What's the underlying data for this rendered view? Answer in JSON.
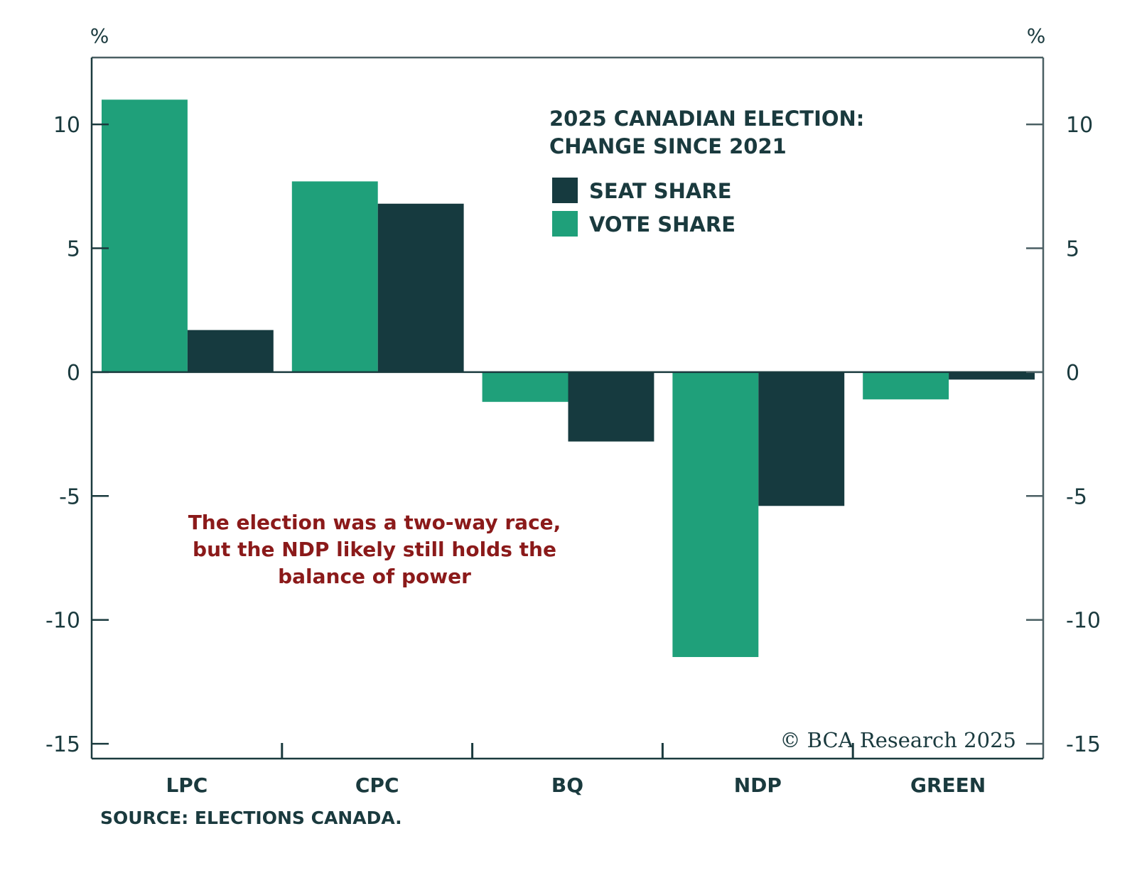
{
  "chart_data": {
    "type": "bar",
    "title": "2025 CANADIAN ELECTION:",
    "subtitle": "CHANGE SINCE 2021",
    "xlabel": "",
    "ylabel": "%",
    "ylabel_right": "%",
    "ylim": [
      -15.6,
      12.7
    ],
    "yticks": [
      10,
      5,
      0,
      -5,
      -10,
      -15
    ],
    "ytick_labels": [
      "10",
      "5",
      "0",
      "-5",
      "-10",
      "-15"
    ],
    "categories": [
      "LPC",
      "CPC",
      "BQ",
      "NDP",
      "GREEN"
    ],
    "series": [
      {
        "name": "VOTE SHARE",
        "color": "#1fa07a",
        "values": [
          11.0,
          7.7,
          -1.2,
          -11.5,
          -1.1
        ]
      },
      {
        "name": "SEAT SHARE",
        "color": "#163a3f",
        "values": [
          1.7,
          6.8,
          -2.8,
          -5.4,
          -0.3
        ]
      }
    ],
    "legend": {
      "position": "top-right",
      "entries": [
        "SEAT SHARE",
        "VOTE SHARE"
      ]
    },
    "legend_order": [
      1,
      0
    ],
    "annotation": [
      "The election was a two-way race,",
      "but the NDP likely still holds the",
      "balance of power"
    ],
    "source": "SOURCE: ELECTIONS CANADA.",
    "copyright": "© BCA Research 2025",
    "grid": false
  },
  "colors": {
    "axis": "#1a3a3e",
    "annotation": "#8b1a1a"
  }
}
